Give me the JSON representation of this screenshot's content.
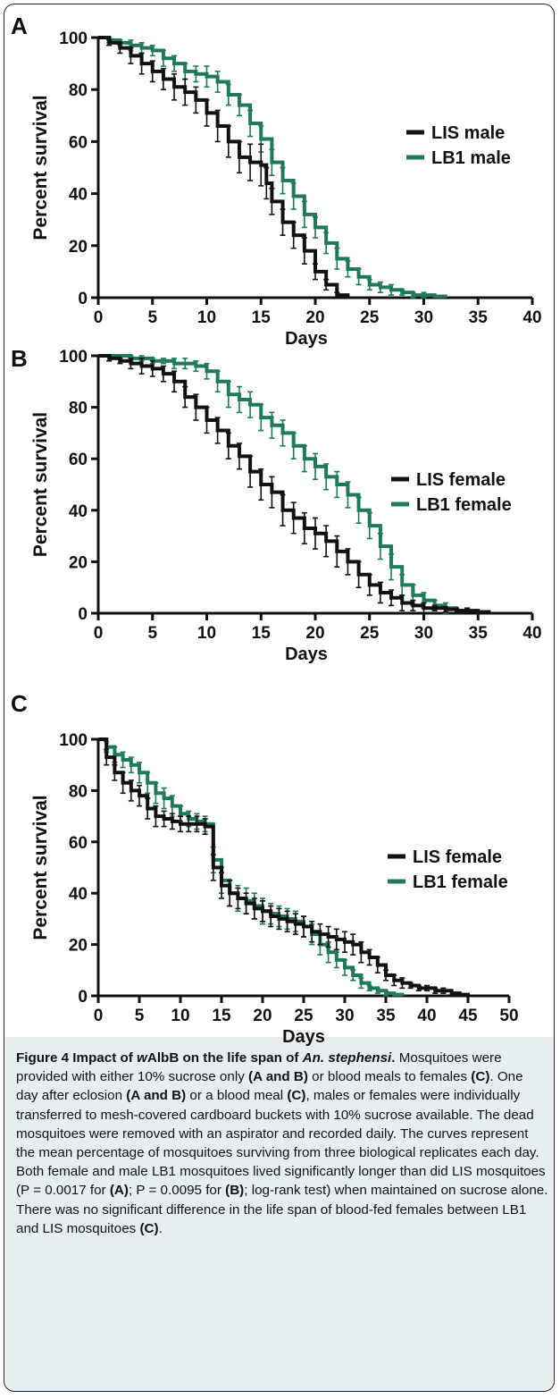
{
  "chart_data": [
    {
      "panel_label": "A",
      "type": "line",
      "xlabel": "Days",
      "ylabel": "Percent survival",
      "xlim": [
        0,
        40
      ],
      "ylim": [
        0,
        100
      ],
      "xticks": [
        0,
        5,
        10,
        15,
        20,
        25,
        30,
        35,
        40
      ],
      "yticks": [
        0,
        20,
        40,
        60,
        80,
        100
      ],
      "legend_position": "right",
      "series": [
        {
          "name": "LIS male",
          "color": "#111111",
          "x": [
            0,
            1,
            2,
            3,
            4,
            5,
            6,
            7,
            8,
            9,
            10,
            11,
            12,
            13,
            14,
            15,
            15.5,
            16,
            17,
            18,
            19,
            20,
            21,
            22,
            23
          ],
          "y": [
            100,
            98,
            96,
            93,
            90,
            87,
            84,
            81,
            79,
            76,
            71,
            66,
            60,
            54,
            52,
            51,
            44,
            37,
            29,
            24,
            18,
            10,
            5,
            1,
            0
          ],
          "err": [
            0,
            1,
            2,
            3,
            4,
            4,
            4,
            5,
            5,
            5,
            5,
            6,
            6,
            6,
            7,
            8,
            6,
            5,
            5,
            5,
            5,
            3,
            2,
            1,
            0
          ]
        },
        {
          "name": "LB1 male",
          "color": "#1f7a5a",
          "x": [
            0,
            1,
            2,
            3,
            4,
            5,
            6,
            7,
            8,
            9,
            10,
            11,
            12,
            13,
            14,
            15,
            16,
            17,
            18,
            19,
            20,
            21,
            22,
            23,
            24,
            25,
            26,
            27,
            28,
            29,
            30,
            31,
            32
          ],
          "y": [
            100,
            99,
            98,
            97,
            96,
            95,
            92,
            90,
            87,
            86,
            85,
            83,
            78,
            74,
            67,
            61,
            52,
            45,
            39,
            32,
            27,
            21,
            15,
            11,
            8,
            5,
            4,
            3,
            2,
            1,
            1,
            0.5,
            0
          ],
          "err": [
            0,
            1,
            1,
            2,
            2,
            2,
            3,
            3,
            3,
            3,
            4,
            4,
            4,
            4,
            5,
            5,
            5,
            5,
            5,
            5,
            4,
            4,
            4,
            3,
            3,
            2,
            2,
            2,
            1,
            1,
            1,
            0,
            0
          ]
        }
      ]
    },
    {
      "panel_label": "B",
      "type": "line",
      "xlabel": "Days",
      "ylabel": "Percent survival",
      "xlim": [
        0,
        40
      ],
      "ylim": [
        0,
        100
      ],
      "xticks": [
        0,
        5,
        10,
        15,
        20,
        25,
        30,
        35,
        40
      ],
      "yticks": [
        0,
        20,
        40,
        60,
        80,
        100
      ],
      "legend_position": "right",
      "series": [
        {
          "name": "LIS female",
          "color": "#111111",
          "x": [
            0,
            1,
            2,
            3,
            4,
            5,
            6,
            7,
            8,
            9,
            10,
            11,
            12,
            13,
            14,
            15,
            16,
            17,
            18,
            19,
            20,
            21,
            22,
            23,
            24,
            25,
            26,
            27,
            28,
            29,
            30,
            31,
            32,
            33,
            34,
            35,
            36
          ],
          "y": [
            100,
            99,
            98,
            97,
            96,
            95,
            93,
            90,
            84,
            80,
            75,
            71,
            65,
            61,
            55,
            50,
            47,
            40,
            37,
            33,
            31,
            28,
            24,
            20,
            15,
            11,
            8,
            6,
            4,
            3,
            2,
            2,
            1.5,
            1,
            1,
            0.5,
            0
          ],
          "err": [
            0,
            1,
            1,
            2,
            3,
            3,
            3,
            4,
            4,
            5,
            5,
            5,
            5,
            5,
            6,
            6,
            6,
            6,
            6,
            6,
            6,
            6,
            6,
            5,
            5,
            4,
            4,
            3,
            3,
            2,
            2,
            1,
            1,
            1,
            1,
            0,
            0
          ]
        },
        {
          "name": "LB1 female",
          "color": "#1f7a5a",
          "x": [
            0,
            1,
            2,
            3,
            4,
            5,
            6,
            7,
            8,
            9,
            10,
            11,
            12,
            13,
            14,
            15,
            16,
            17,
            18,
            19,
            20,
            21,
            22,
            23,
            24,
            25,
            26,
            27,
            28,
            29,
            30,
            31,
            32,
            33,
            34
          ],
          "y": [
            100,
            100,
            100,
            99,
            99,
            98,
            98,
            97,
            97,
            96,
            94,
            90,
            85,
            83,
            81,
            76,
            73,
            70,
            65,
            60,
            57,
            53,
            50,
            46,
            40,
            34,
            26,
            18,
            11,
            7,
            5,
            3,
            2,
            1,
            0
          ],
          "err": [
            0,
            0,
            1,
            1,
            1,
            1,
            1,
            2,
            2,
            2,
            3,
            4,
            5,
            5,
            5,
            5,
            5,
            5,
            5,
            5,
            5,
            5,
            5,
            5,
            5,
            5,
            5,
            5,
            4,
            4,
            3,
            2,
            2,
            1,
            0
          ]
        }
      ]
    },
    {
      "panel_label": "C",
      "type": "line",
      "xlabel": "Days",
      "ylabel": "Percent survival",
      "xlim": [
        0,
        50
      ],
      "ylim": [
        0,
        100
      ],
      "xticks": [
        0,
        5,
        10,
        15,
        20,
        25,
        30,
        35,
        40,
        45,
        50
      ],
      "yticks": [
        0,
        20,
        40,
        60,
        80,
        100
      ],
      "legend_position": "right",
      "series": [
        {
          "name": "LIS female",
          "color": "#111111",
          "x": [
            0,
            1,
            2,
            3,
            4,
            5,
            6,
            7,
            8,
            9,
            10,
            11,
            12,
            13,
            14,
            15,
            16,
            17,
            18,
            19,
            20,
            21,
            22,
            23,
            24,
            25,
            26,
            27,
            28,
            29,
            30,
            31,
            32,
            33,
            34,
            35,
            36,
            37,
            38,
            39,
            40,
            41,
            42,
            43,
            44,
            45
          ],
          "y": [
            100,
            93,
            87,
            83,
            80,
            78,
            73,
            70,
            69,
            68,
            67,
            67,
            67,
            66,
            50,
            43,
            40,
            38,
            36,
            34,
            33,
            31,
            30,
            29,
            28,
            27,
            25,
            24,
            23,
            22,
            21,
            20,
            17,
            15,
            12,
            8,
            6,
            5,
            4,
            3,
            3,
            2,
            2,
            1,
            0.5,
            0
          ],
          "err": [
            0,
            3,
            3,
            4,
            4,
            4,
            4,
            4,
            3,
            3,
            3,
            3,
            3,
            3,
            5,
            5,
            5,
            4,
            4,
            4,
            4,
            4,
            4,
            4,
            4,
            4,
            4,
            4,
            4,
            4,
            4,
            4,
            4,
            3,
            3,
            2,
            2,
            2,
            1,
            1,
            1,
            1,
            1,
            0,
            0,
            0
          ]
        },
        {
          "name": "LB1 female",
          "color": "#1f7a5a",
          "x": [
            0,
            1,
            2,
            3,
            4,
            5,
            6,
            7,
            8,
            9,
            10,
            11,
            12,
            13,
            14,
            15,
            16,
            17,
            18,
            19,
            20,
            21,
            22,
            23,
            24,
            25,
            26,
            27,
            28,
            29,
            30,
            31,
            32,
            33,
            34,
            35,
            36,
            37
          ],
          "y": [
            100,
            97,
            94,
            92,
            90,
            87,
            83,
            79,
            77,
            74,
            71,
            69,
            68,
            67,
            53,
            45,
            40,
            38,
            37,
            35,
            33,
            32,
            31,
            30,
            29,
            27,
            24,
            20,
            17,
            14,
            11,
            8,
            5,
            3,
            2,
            1,
            0.5,
            0
          ],
          "err": [
            0,
            2,
            3,
            3,
            3,
            4,
            4,
            4,
            4,
            4,
            3,
            3,
            3,
            3,
            5,
            5,
            5,
            5,
            5,
            5,
            5,
            4,
            4,
            4,
            4,
            4,
            4,
            4,
            4,
            3,
            3,
            2,
            2,
            1,
            1,
            1,
            0,
            0
          ]
        }
      ]
    }
  ],
  "caption": {
    "title_prefix": "Figure 4 Impact of ",
    "title_italic_w": "w",
    "title_mid": "AlbB on the life span of ",
    "title_species": "An. stephensi",
    "title_end": ". ",
    "s1a": "Mosquitoes were provided with either 10% sucrose only ",
    "refAB": "(A and B)",
    "s1b": " or blood meals to females ",
    "refC": "(C)",
    "s1c": ". One day after eclosion ",
    "s2a": " or a blood meal ",
    "s2b": ", males or females were individually transferred to mesh-covered cardboard buckets with 10% sucrose available. The dead mosquitoes were removed with an aspirator and recorded daily. The curves represent the mean percentage of mosquitoes surviving from three biological replicates each day. Both female and male LB1 mosquitoes lived significantly longer than did LIS mosquitoes (P = 0.0017 for ",
    "refA": "(A)",
    "s3a": "; P = 0.0095 for ",
    "refB": "(B)",
    "s3b": "; log-rank test) when maintained on sucrose alone. There was no significant difference in the life span of blood-fed females between LB1 and LIS mosquitoes ",
    "s3c": "."
  }
}
